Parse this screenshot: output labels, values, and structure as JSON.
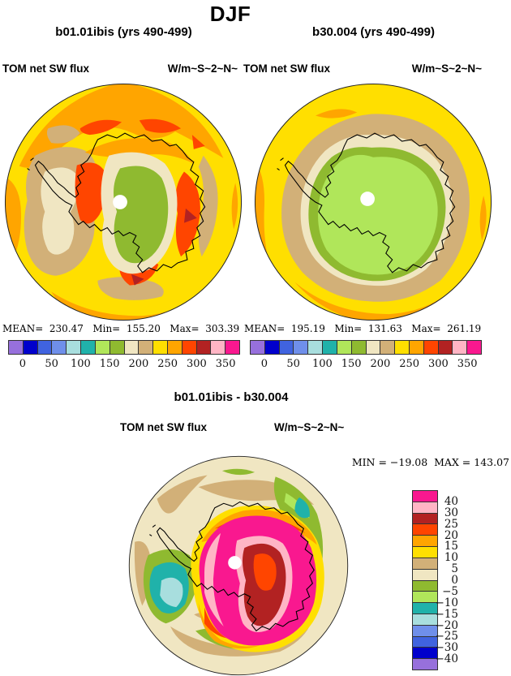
{
  "page_title": "DJF",
  "panels": {
    "left": {
      "title": "b01.01ibis (yrs 490-499)",
      "field": "TOM net SW flux",
      "units": "W/m~S~2~N~",
      "stats": "MEAN=  230.47   Min=  155.20   Max=  303.39"
    },
    "right": {
      "title": "b30.004 (yrs 490-499)",
      "field": "TOM net SW flux",
      "units": "W/m~S~2~N~",
      "stats": "MEAN=  195.19   Min=  131.63   Max=  261.19"
    },
    "diff": {
      "title": "b01.01ibis - b30.004",
      "field": "TOM net SW flux",
      "units": "W/m~S~2~N~",
      "minmax": "MIN = −19.08  MAX = 143.07"
    }
  },
  "colorbar_abs": {
    "segments": 16,
    "colors": [
      "#9770DC",
      "#0000CC",
      "#4063DF",
      "#6F8FEA",
      "#A8DEDE",
      "#20B2AA",
      "#B0E65A",
      "#8FBA30",
      "#F0E6C2",
      "#D2B078",
      "#FFDF00",
      "#FFA500",
      "#FF4500",
      "#B22222",
      "#FFB5C5",
      "#F9188F"
    ],
    "tick_labels": [
      "0",
      "50",
      "100",
      "150",
      "200",
      "250",
      "300",
      "350"
    ]
  },
  "colorbar_diff": {
    "segments": 16,
    "colors": [
      "#F9188F",
      "#FFB5C5",
      "#B22222",
      "#FF4500",
      "#FFA500",
      "#FFDF00",
      "#D2B078",
      "#F0E6C2",
      "#8FBA30",
      "#B0E65A",
      "#20B2AA",
      "#A8DEDE",
      "#6F8FEA",
      "#4063DF",
      "#0000CC",
      "#9770DC"
    ],
    "tick_labels": [
      "40",
      "30",
      "25",
      "20",
      "15",
      "10",
      "5",
      "0",
      "−5",
      "−10",
      "−15",
      "−20",
      "−25",
      "−30",
      "−40"
    ]
  },
  "chart_data": [
    {
      "type": "heatmap",
      "subtype": "filled-contour south polar stereographic map",
      "season": "DJF",
      "title": "b01.01ibis (yrs 490-499)",
      "variable": "TOM net SW flux",
      "units": "W/m~S~2~N~",
      "stats": {
        "mean": 230.47,
        "min": 155.2,
        "max": 303.39
      },
      "contour_levels": [
        0,
        25,
        50,
        75,
        100,
        125,
        150,
        175,
        200,
        225,
        250,
        275,
        300,
        325,
        350
      ],
      "legend_ticks": [
        0,
        50,
        100,
        150,
        200,
        250,
        300,
        350
      ],
      "legend_position": "below",
      "palette_low_to_high": [
        "#9770DC",
        "#0000CC",
        "#4063DF",
        "#6F8FEA",
        "#A8DEDE",
        "#20B2AA",
        "#B0E65A",
        "#8FBA30",
        "#F0E6C2",
        "#D2B078",
        "#FFDF00",
        "#FFA500",
        "#FF4500",
        "#B22222",
        "#FFB5C5",
        "#F9188F"
      ],
      "notes": "Ocean mostly 250-300 (yellow/orange) with 300-325 patches; West Antarctica sector 200-250 (cream/tan); East Antarctic plateau 175-200 (green) ringed by 200-225 (cream); Antarctica coastline overlaid; white hole at pole"
    },
    {
      "type": "heatmap",
      "subtype": "filled-contour south polar stereographic map",
      "season": "DJF",
      "title": "b30.004 (yrs 490-499)",
      "variable": "TOM net SW flux",
      "units": "W/m~S~2~N~",
      "stats": {
        "mean": 195.19,
        "min": 131.63,
        "max": 261.19
      },
      "contour_levels": [
        0,
        25,
        50,
        75,
        100,
        125,
        150,
        175,
        200,
        225,
        250,
        275,
        300,
        325,
        350
      ],
      "legend_ticks": [
        0,
        50,
        100,
        150,
        200,
        250,
        300,
        350
      ],
      "legend_position": "below",
      "palette_low_to_high": [
        "#9770DC",
        "#0000CC",
        "#4063DF",
        "#6F8FEA",
        "#A8DEDE",
        "#20B2AA",
        "#B0E65A",
        "#8FBA30",
        "#F0E6C2",
        "#D2B078",
        "#FFDF00",
        "#FFA500",
        "#FF4500",
        "#B22222",
        "#FFB5C5",
        "#F9188F"
      ],
      "notes": "Interior Antarctica 150-175 (light green) with 175-200 (green) fringe, ringed by 200-225 cream and 225-250 tan; surrounding ocean 250-275 yellow with 275-300 orange at rim"
    },
    {
      "type": "heatmap",
      "subtype": "filled-contour difference map, south polar stereographic",
      "season": "DJF",
      "title": "b01.01ibis - b30.004",
      "variable": "TOM net SW flux",
      "units": "W/m~S~2~N~",
      "stats": {
        "min": -19.08,
        "max": 143.07
      },
      "contour_levels": [
        -40,
        -30,
        -25,
        -20,
        -15,
        -10,
        -5,
        0,
        5,
        10,
        15,
        20,
        25,
        30,
        40
      ],
      "legend_ticks": [
        40,
        30,
        25,
        20,
        15,
        10,
        5,
        0,
        -5,
        -10,
        -15,
        -20,
        -25,
        -30,
        -40
      ],
      "legend_position": "right-vertical",
      "palette_low_to_high": [
        "#9770DC",
        "#0000CC",
        "#4063DF",
        "#6F8FEA",
        "#A8DEDE",
        "#20B2AA",
        "#B0E65A",
        "#8FBA30",
        "#F0E6C2",
        "#D2B078",
        "#FFDF00",
        "#FFA500",
        "#FF4500",
        "#B22222",
        "#FFB5C5",
        "#F9188F"
      ],
      "notes": "Large >40 (magenta) difference over Antarctica with 25-30 (dark red) and 20-25 (orange-red) core, 30-40 pink rings; ocean near 0-5 (cream) with 5-10 tan, -5-0 green, -10--15 teal and -15--20 pale cyan patches; yellow/orange/red bands ring the magenta region"
    }
  ]
}
